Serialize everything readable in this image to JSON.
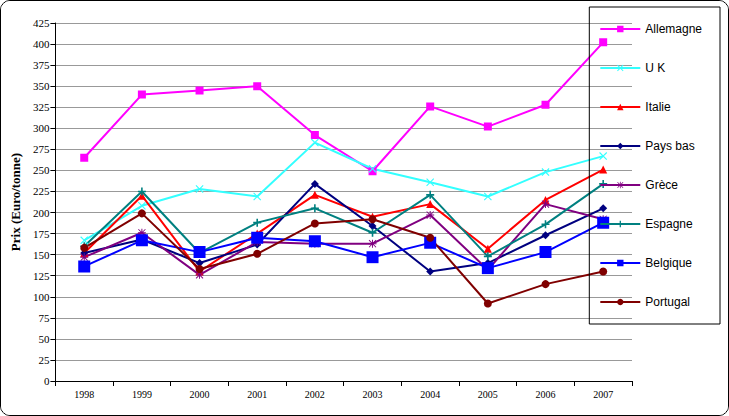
{
  "chart_data": {
    "type": "line",
    "y_label": "Prix (Euro/tonne)",
    "categories": [
      "1998",
      "1999",
      "2000",
      "2001",
      "2002",
      "2003",
      "2004",
      "2005",
      "2006",
      "2007"
    ],
    "series": [
      {
        "name": "Allemagne",
        "color": "#ff00ff",
        "marker": "square",
        "values": [
          265,
          340,
          345,
          350,
          292,
          249,
          326,
          302,
          328,
          402
        ]
      },
      {
        "name": "U K",
        "color": "#33ffff",
        "marker": "x",
        "values": [
          167,
          208,
          228,
          219,
          283,
          252,
          236,
          219,
          248,
          267
        ]
      },
      {
        "name": "Italie",
        "color": "#ff0000",
        "marker": "triangle",
        "values": [
          152,
          220,
          130,
          175,
          221,
          195,
          210,
          157,
          215,
          251
        ]
      },
      {
        "name": "Pays bas",
        "color": "#000080",
        "marker": "diamond",
        "values": [
          152,
          168,
          140,
          162,
          234,
          184,
          130,
          140,
          173,
          205
        ]
      },
      {
        "name": "Grèce",
        "color": "#800080",
        "marker": "star",
        "values": [
          147,
          176,
          126,
          165,
          163,
          163,
          197,
          132,
          210,
          192
        ]
      },
      {
        "name": "Espagne",
        "color": "#008080",
        "marker": "plus",
        "values": [
          160,
          225,
          152,
          188,
          205,
          176,
          221,
          148,
          186,
          234
        ]
      },
      {
        "name": "Belgique",
        "color": "#0000ff",
        "marker": "dash",
        "values": [
          136,
          167,
          153,
          170,
          166,
          147,
          164,
          134,
          153,
          188
        ]
      },
      {
        "name": "Portugal",
        "color": "#800000",
        "marker": "circle",
        "values": [
          158,
          199,
          133,
          151,
          187,
          192,
          170,
          92,
          115,
          130
        ]
      }
    ],
    "ylim": [
      0,
      425
    ],
    "yticks": [
      0,
      25,
      50,
      75,
      100,
      125,
      150,
      175,
      200,
      225,
      250,
      275,
      300,
      325,
      350,
      375,
      400,
      425
    ],
    "grid": true,
    "legend": "right"
  }
}
